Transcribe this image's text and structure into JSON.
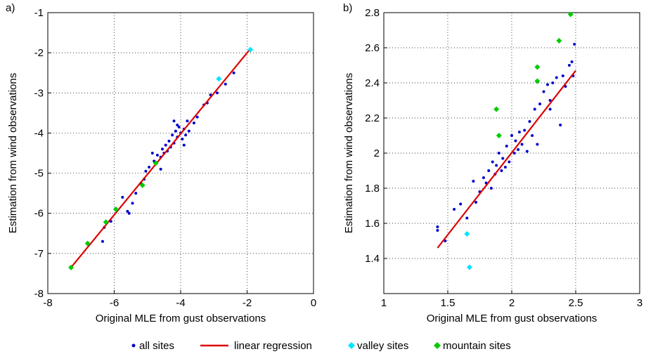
{
  "chart_data": [
    {
      "type": "scatter",
      "label": "a)",
      "x_label": "Original MLE from gust observations",
      "y_label": "Estimation from wind observations",
      "xlim": [
        -8,
        0
      ],
      "xticks": [
        -8,
        -6,
        -4,
        -2,
        0
      ],
      "ylim": [
        -8,
        -1
      ],
      "yticks": [
        -8,
        -7,
        -6,
        -5,
        -4,
        -3,
        -2,
        -1
      ],
      "grid": true,
      "series": [
        {
          "name": "all sites",
          "color": "#0000cc",
          "marker": "dot",
          "x": [
            -6.35,
            -6.3,
            -6.1,
            -5.75,
            -5.6,
            -5.55,
            -5.45,
            -5.35,
            -5.2,
            -5.1,
            -5.05,
            -4.95,
            -4.8,
            -4.85,
            -4.7,
            -4.6,
            -4.55,
            -4.5,
            -4.45,
            -4.4,
            -4.35,
            -4.3,
            -4.25,
            -4.2,
            -4.15,
            -4.1,
            -4.05,
            -4.0,
            -3.95,
            -3.9,
            -3.85,
            -3.8,
            -3.75,
            -4.1,
            -3.9,
            -3.6,
            -3.5,
            -3.3,
            -3.2,
            -3.1,
            -2.9,
            -2.65,
            -2.4,
            -4.6,
            -4.2
          ],
          "values": [
            -6.7,
            -6.35,
            -6.2,
            -5.6,
            -5.95,
            -6.0,
            -5.75,
            -5.5,
            -5.25,
            -5.15,
            -4.95,
            -4.85,
            -4.7,
            -4.5,
            -4.55,
            -4.6,
            -4.4,
            -4.5,
            -4.3,
            -4.45,
            -4.2,
            -4.35,
            -4.05,
            -4.25,
            -3.95,
            -4.1,
            -3.85,
            -4.0,
            -4.15,
            -3.9,
            -4.05,
            -3.7,
            -3.95,
            -3.8,
            -4.3,
            -3.75,
            -3.6,
            -3.3,
            -3.25,
            -3.05,
            -3.0,
            -2.78,
            -2.5,
            -4.9,
            -3.7
          ]
        },
        {
          "name": "linear regression",
          "color": "#dd0000",
          "marker": "line",
          "x": [
            -7.3,
            -1.9
          ],
          "values": [
            -7.35,
            -1.9
          ]
        },
        {
          "name": "valley sites",
          "color": "#00e5ff",
          "marker": "diamond",
          "x": [
            -2.85,
            -1.9
          ],
          "values": [
            -2.65,
            -1.92
          ]
        },
        {
          "name": "mountain sites",
          "color": "#00cc00",
          "marker": "diamond",
          "x": [
            -7.3,
            -6.8,
            -6.25,
            -5.95,
            -5.15,
            -4.75
          ],
          "values": [
            -7.35,
            -6.75,
            -6.22,
            -5.9,
            -5.3,
            -4.75
          ]
        }
      ]
    },
    {
      "type": "scatter",
      "label": "b)",
      "x_label": "Original MLE from gust observations",
      "y_label": "Estimation from wind observations",
      "xlim": [
        1,
        3
      ],
      "xticks": [
        1,
        1.5,
        2,
        2.5,
        3
      ],
      "ylim": [
        1.2,
        2.8
      ],
      "yticks": [
        1.4,
        1.6,
        1.8,
        2,
        2.2,
        2.4,
        2.6,
        2.8
      ],
      "grid": true,
      "series": [
        {
          "name": "all sites",
          "color": "#0000cc",
          "marker": "dot",
          "x": [
            1.42,
            1.42,
            1.48,
            1.55,
            1.6,
            1.65,
            1.7,
            1.72,
            1.75,
            1.78,
            1.8,
            1.82,
            1.84,
            1.85,
            1.87,
            1.88,
            1.9,
            1.92,
            1.93,
            1.95,
            1.96,
            1.98,
            2.0,
            2.02,
            2.03,
            2.05,
            2.06,
            2.08,
            2.1,
            2.12,
            2.14,
            2.16,
            2.18,
            2.2,
            2.22,
            2.25,
            2.28,
            2.3,
            2.32,
            2.35,
            2.38,
            2.4,
            2.42,
            2.45,
            2.47,
            2.48,
            2.49,
            2.3
          ],
          "values": [
            1.58,
            1.56,
            1.5,
            1.68,
            1.71,
            1.63,
            1.84,
            1.72,
            1.78,
            1.86,
            1.83,
            1.9,
            1.8,
            1.95,
            1.88,
            1.93,
            2.0,
            1.9,
            1.97,
            1.92,
            2.04,
            1.95,
            2.1,
            2.0,
            2.07,
            2.02,
            2.12,
            2.05,
            2.13,
            2.01,
            2.18,
            2.1,
            2.25,
            2.05,
            2.28,
            2.35,
            2.39,
            2.3,
            2.4,
            2.43,
            2.16,
            2.44,
            2.38,
            2.5,
            2.52,
            2.44,
            2.62,
            2.25
          ]
        },
        {
          "name": "linear regression",
          "color": "#dd0000",
          "marker": "line",
          "x": [
            1.42,
            2.5
          ],
          "values": [
            1.46,
            2.47
          ]
        },
        {
          "name": "valley sites",
          "color": "#00e5ff",
          "marker": "diamond",
          "x": [
            1.65,
            1.67
          ],
          "values": [
            1.54,
            1.35
          ]
        },
        {
          "name": "mountain sites",
          "color": "#00cc00",
          "marker": "diamond",
          "x": [
            1.88,
            1.9,
            2.2,
            2.2,
            2.37,
            2.46
          ],
          "values": [
            2.25,
            2.1,
            2.49,
            2.41,
            2.64,
            2.79
          ]
        }
      ]
    }
  ]
}
